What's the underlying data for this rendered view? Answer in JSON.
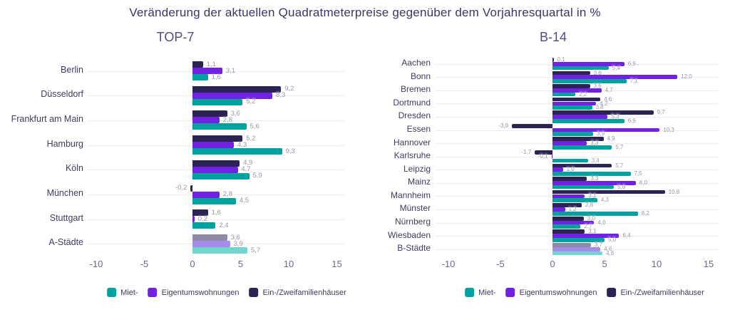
{
  "title": "Veränderung der aktuellen Quadratmeterpreise gegenüber dem Vorjahresquartal in %",
  "colors": {
    "rent": "#00a29f",
    "condos": "#7120e4",
    "houses": "#2c2355",
    "rent_muted": "#72d5ce",
    "condos_muted": "#a58bee",
    "houses_muted": "#8e89a4",
    "grid": "#eceaf2",
    "category_label": "#3f3c5c",
    "value_label": "#9a95a9",
    "tick_label": "#6b6890",
    "title_text": "#3c3566"
  },
  "legend": {
    "items": [
      {
        "label": "Miet-",
        "color": "#00a29f"
      },
      {
        "label": "Eigentumswohnungen",
        "color": "#7120e4"
      },
      {
        "label": "Ein-/Zweifamilienhäuser",
        "color": "#2c2355"
      }
    ]
  },
  "chart_data": [
    {
      "type": "bar",
      "orientation": "horizontal",
      "title": "TOP-7",
      "xlim": [
        -10,
        15
      ],
      "xticks": [
        -10,
        -5,
        0,
        5,
        10,
        15
      ],
      "grid": true,
      "legend_position": "bottom",
      "value_label_format": "decimal-comma-1",
      "muted_last_category": true,
      "categories": [
        "Berlin",
        "Düsseldorf",
        "Frankfurt am Main",
        "Hamburg",
        "Köln",
        "München",
        "Stuttgart",
        "A-Städte"
      ],
      "series": [
        {
          "name": "Miet-",
          "color": "#00a29f",
          "muted_color": "#72d5ce",
          "values": [
            1.6,
            5.2,
            5.6,
            9.3,
            5.9,
            4.5,
            2.4,
            5.7
          ]
        },
        {
          "name": "Eigentumswohnungen",
          "color": "#7120e4",
          "muted_color": "#a58bee",
          "values": [
            3.1,
            8.3,
            2.8,
            4.3,
            4.7,
            2.8,
            0.2,
            3.9
          ]
        },
        {
          "name": "Ein-/Zweifamilienhäuser",
          "color": "#2c2355",
          "muted_color": "#8e89a4",
          "values": [
            1.1,
            9.2,
            3.6,
            5.2,
            4.9,
            -0.2,
            1.6,
            3.6
          ]
        }
      ]
    },
    {
      "type": "bar",
      "orientation": "horizontal",
      "title": "B-14",
      "xlim": [
        -10,
        15
      ],
      "xticks": [
        -10,
        -5,
        0,
        5,
        10,
        15
      ],
      "grid": true,
      "legend_position": "bottom",
      "value_label_format": "decimal-comma-1",
      "muted_last_category": true,
      "categories": [
        "Aachen",
        "Bonn",
        "Bremen",
        "Dortmund",
        "Dresden",
        "Essen",
        "Hannover",
        "Karlsruhe",
        "Leipzig",
        "Mainz",
        "Mannheim",
        "Münster",
        "Nürnberg",
        "Wiesbaden",
        "B-Städte"
      ],
      "series": [
        {
          "name": "Miet-",
          "color": "#00a29f",
          "muted_color": "#72d5ce",
          "values": [
            5.4,
            7.1,
            2.2,
            3.8,
            6.9,
            3.9,
            5.7,
            3.4,
            7.5,
            5.9,
            4.3,
            8.2,
            2.7,
            5.0,
            4.8
          ]
        },
        {
          "name": "Eigentumswohnungen",
          "color": "#7120e4",
          "muted_color": "#a58bee",
          "values": [
            6.9,
            12.0,
            4.7,
            4.2,
            5.3,
            10.3,
            3.3,
            -0.1,
            1.0,
            8.0,
            3.1,
            1.2,
            4.0,
            6.4,
            4.6
          ]
        },
        {
          "name": "Ein-/Zweifamilienhäuser",
          "color": "#2c2355",
          "muted_color": "#8e89a4",
          "values": [
            0.1,
            3.6,
            3.6,
            4.6,
            9.7,
            -3.9,
            4.9,
            -1.7,
            5.7,
            3.3,
            10.8,
            2.8,
            3.0,
            3.1,
            3.7
          ]
        }
      ]
    }
  ]
}
